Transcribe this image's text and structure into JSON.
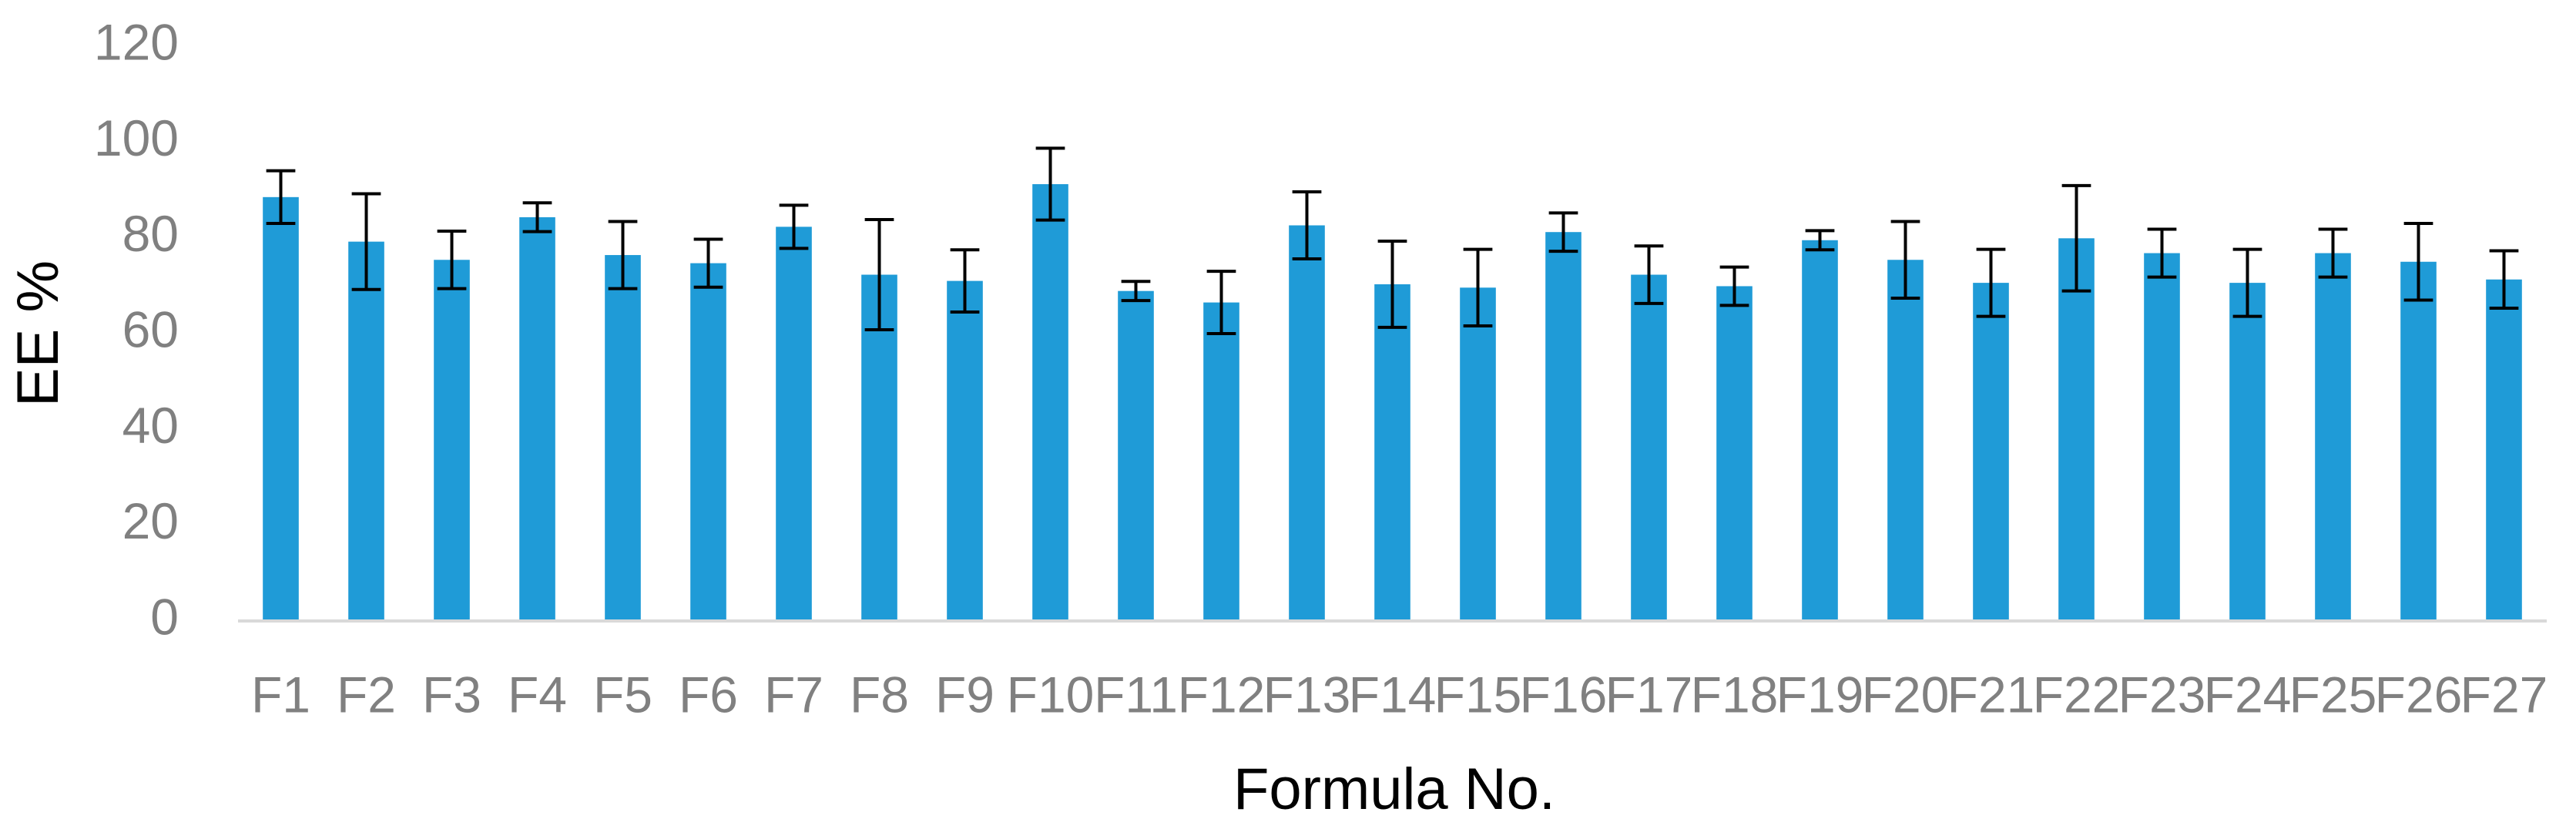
{
  "chart_data": {
    "type": "bar",
    "x_label": "Formula No.",
    "y_label": "EE %",
    "categories": [
      "F1",
      "F2",
      "F3",
      "F4",
      "F5",
      "F6",
      "F7",
      "F8",
      "F9",
      "F10",
      "F11",
      "F12",
      "F13",
      "F14",
      "F15",
      "F16",
      "F17",
      "F18",
      "F19",
      "F20",
      "F21",
      "F22",
      "F23",
      "F24",
      "F25",
      "F26",
      "F27"
    ],
    "values": [
      88.5,
      79.2,
      75.4,
      84.3,
      76.4,
      74.7,
      82.3,
      72.3,
      71,
      91.2,
      68.9,
      66.5,
      82.6,
      70.3,
      69.6,
      81.2,
      72.3,
      69.9,
      79.5,
      75.4,
      70.6,
      79.9,
      76.8,
      70.6,
      76.8,
      75,
      71.3
    ],
    "errors": [
      5.5,
      10,
      6,
      3,
      7,
      5,
      4.5,
      11.5,
      6.5,
      7.5,
      2,
      6.5,
      7,
      9,
      8,
      4,
      6,
      4,
      2,
      8,
      7,
      11,
      5,
      7,
      5,
      8,
      6
    ],
    "color": "#1f9bd7",
    "ylim": [
      0,
      120
    ],
    "yticks": [
      0,
      20,
      40,
      60,
      80,
      100,
      120
    ],
    "grid": false
  }
}
